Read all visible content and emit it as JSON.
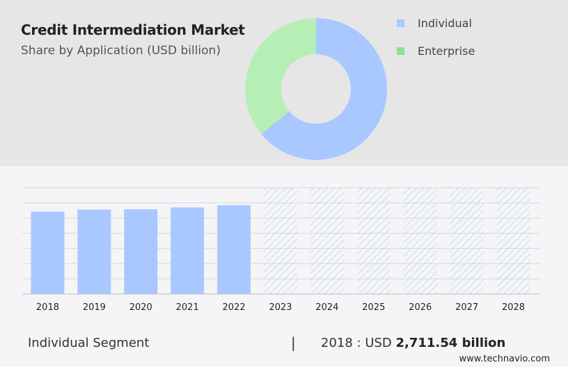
{
  "title": "Credit Intermediation Market",
  "subtitle": "Share by Application (USD billion)",
  "legend": [
    {
      "label": "Individual",
      "color": "#a9c8ff"
    },
    {
      "label": "Enterprise",
      "color": "#8ee08e"
    }
  ],
  "colors": {
    "individual_bar": "#a9c8ff",
    "enterprise_donut": "#b6efb6",
    "hatch": "#b5cdfa"
  },
  "chart_data": [
    {
      "type": "pie",
      "donut": true,
      "categories": [
        "Individual",
        "Enterprise"
      ],
      "values": [
        64,
        36
      ]
    },
    {
      "type": "bar",
      "categories": [
        "2018",
        "2019",
        "2020",
        "2021",
        "2022",
        "2023",
        "2024",
        "2025",
        "2026",
        "2027",
        "2028"
      ],
      "values": [
        2711.54,
        2780,
        2790,
        2850,
        2920,
        null,
        null,
        null,
        null,
        null,
        null
      ],
      "forecast_categories": [
        "2023",
        "2024",
        "2025",
        "2026",
        "2027",
        "2028"
      ],
      "ylim": [
        0,
        3500
      ],
      "grid": true
    }
  ],
  "footer": {
    "segment": "Individual Segment",
    "divider": "|",
    "value_prefix": "2018 : USD ",
    "value_bold": "2,711.54 billion"
  },
  "logo": "www.technavio.com"
}
